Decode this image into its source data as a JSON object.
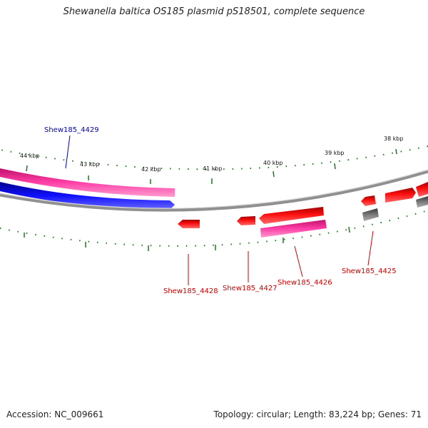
{
  "title": "Shewanella baltica OS185 plasmid pS18501, complete sequence",
  "footer": {
    "accession": "Accession: NC_009661",
    "topology": "Topology: circular; Length: 83,224 bp; Genes: 71"
  },
  "scale_labels": [
    "44 kbp",
    "43 kbp",
    "42 kbp",
    "41 kbp",
    "40 kbp",
    "39 kbp",
    "38 kbp"
  ],
  "gene_labels": [
    {
      "name": "Shew185_4429",
      "color": "#0000bb"
    },
    {
      "name": "Shew185_4428",
      "color": "#cc0000"
    },
    {
      "name": "Shew185_4427",
      "color": "#cc0000"
    },
    {
      "name": "Shew185_4426",
      "color": "#cc0000"
    },
    {
      "name": "Shew185_4425",
      "color": "#cc0000"
    }
  ],
  "colors": {
    "cds_forward": "#ff0000",
    "cds_reverse": "#0000ff",
    "gene_track": "#ff2a9a",
    "other_feature": "#707070",
    "backbone": "#909090",
    "ticks": "#1a7a1a"
  }
}
